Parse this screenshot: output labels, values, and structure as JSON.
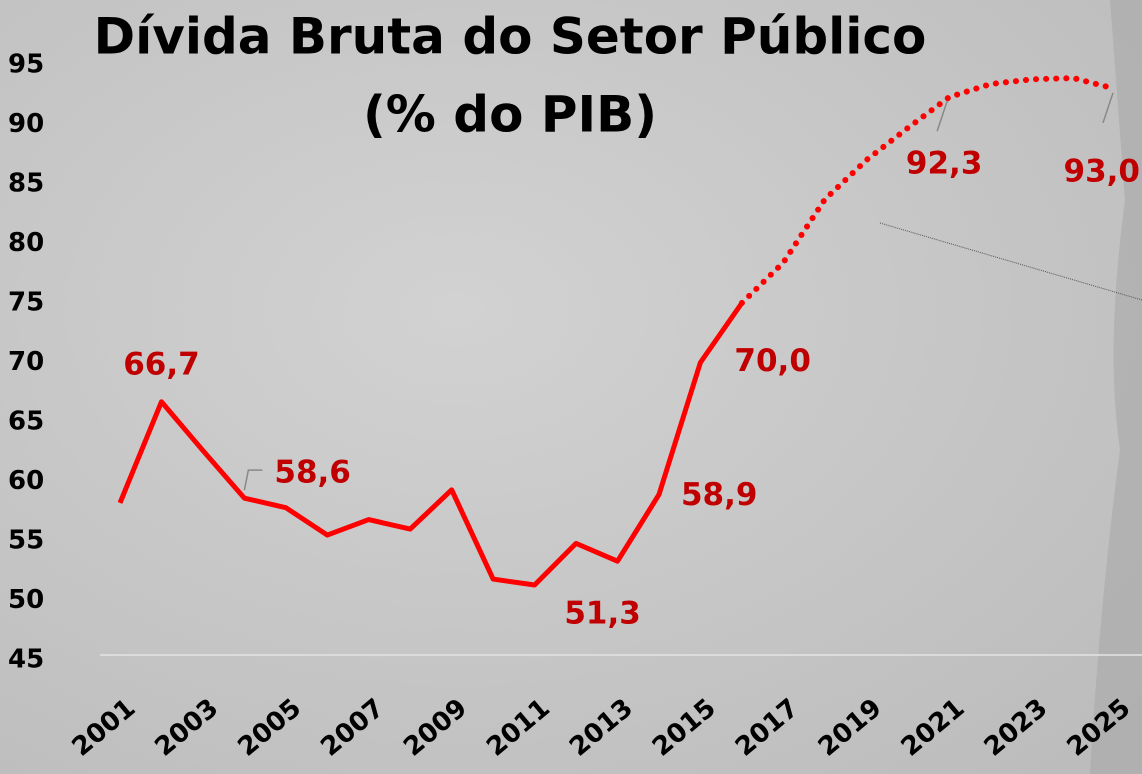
{
  "chart_data": {
    "type": "line",
    "title": "Dívida Bruta do Setor Público",
    "subtitle": "(% do PIB)",
    "x": [
      2001,
      2002,
      2003,
      2004,
      2005,
      2006,
      2007,
      2008,
      2009,
      2010,
      2011,
      2012,
      2013,
      2014,
      2015,
      2016,
      2017,
      2018,
      2019,
      2020,
      2021,
      2022,
      2023,
      2024,
      2025
    ],
    "xlim": [
      2001,
      2025
    ],
    "xticks": [
      2001,
      2003,
      2005,
      2007,
      2009,
      2011,
      2013,
      2015,
      2017,
      2019,
      2021,
      2023,
      2025
    ],
    "ylim": [
      45,
      95
    ],
    "yticks": [
      45,
      50,
      55,
      60,
      65,
      70,
      75,
      80,
      85,
      90,
      95
    ],
    "series": [
      {
        "color": "#ff0000",
        "line_style": "solid",
        "values": [
          58.2,
          66.7,
          62.6,
          58.6,
          57.8,
          55.5,
          56.8,
          56.0,
          59.3,
          51.8,
          51.3,
          54.8,
          53.3,
          58.9,
          70.0,
          75.0,
          null,
          null,
          null,
          null,
          null,
          null,
          null,
          null,
          null
        ],
        "value_labels": [
          null,
          "66,7",
          null,
          "58,6",
          null,
          null,
          null,
          null,
          null,
          null,
          "51,3",
          null,
          null,
          "58,9",
          "70,0",
          null,
          null,
          null,
          null,
          null,
          null,
          null,
          null,
          null,
          null
        ]
      },
      {
        "color": "#ff0000",
        "line_style": "dotted",
        "values": [
          null,
          null,
          null,
          null,
          null,
          null,
          null,
          null,
          null,
          null,
          null,
          null,
          null,
          null,
          null,
          75.0,
          78.4,
          83.7,
          87.0,
          89.7,
          92.3,
          93.4,
          93.8,
          93.9,
          93.0
        ],
        "value_labels": [
          null,
          null,
          null,
          null,
          null,
          null,
          null,
          null,
          null,
          null,
          null,
          null,
          null,
          null,
          null,
          null,
          null,
          null,
          null,
          null,
          "92,3",
          null,
          null,
          null,
          "93,0"
        ]
      }
    ]
  }
}
